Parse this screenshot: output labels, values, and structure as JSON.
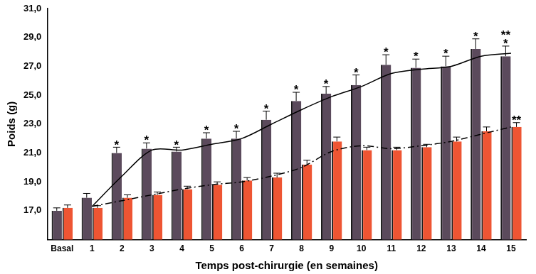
{
  "chart_data": {
    "type": "bar",
    "x_label": "Temps post-chirurgie (en semaines)",
    "y_label": "Poids (g)",
    "categories": [
      "Basal",
      "1",
      "2",
      "3",
      "4",
      "5",
      "6",
      "7",
      "8",
      "9",
      "10",
      "11",
      "12",
      "13",
      "14",
      "15"
    ],
    "series": [
      {
        "color": "#5b4a5c",
        "values": [
          17.0,
          17.9,
          21.0,
          21.3,
          21.1,
          22.0,
          22.0,
          23.3,
          24.6,
          25.1,
          25.7,
          27.1,
          26.9,
          27.0,
          28.2,
          27.7
        ],
        "errors": [
          0.2,
          0.3,
          0.4,
          0.4,
          0.3,
          0.4,
          0.5,
          0.6,
          0.6,
          0.5,
          0.7,
          0.7,
          0.6,
          0.7,
          0.7,
          0.7
        ]
      },
      {
        "color": "#ee5533",
        "values": [
          17.2,
          17.2,
          17.9,
          18.1,
          18.5,
          18.8,
          19.1,
          19.3,
          20.2,
          21.8,
          21.2,
          21.2,
          21.4,
          21.8,
          22.5,
          22.8
        ],
        "errors": [
          0.2,
          0.15,
          0.2,
          0.2,
          0.2,
          0.2,
          0.2,
          0.3,
          0.3,
          0.3,
          0.2,
          0.2,
          0.2,
          0.3,
          0.3,
          0.3
        ]
      },
      {
        "type": "line",
        "color": "#000000",
        "line_style": "solid",
        "marker": "none",
        "values": [
          null,
          17.3,
          19.4,
          21.2,
          21.2,
          21.6,
          22.0,
          23.0,
          24.0,
          24.9,
          25.6,
          26.5,
          26.8,
          27.0,
          27.7,
          27.9
        ]
      },
      {
        "type": "line",
        "color": "#000000",
        "line_style": "dashdot",
        "marker": "none",
        "values": [
          null,
          17.3,
          17.7,
          18.1,
          18.5,
          18.8,
          19.0,
          19.4,
          20.0,
          21.1,
          21.5,
          21.3,
          21.5,
          21.8,
          22.3,
          22.8
        ]
      }
    ],
    "ylim": [
      15,
      31
    ],
    "yticks": [
      {
        "value": 17,
        "label": "17,0"
      },
      {
        "value": 19,
        "label": "19,0"
      },
      {
        "value": 21,
        "label": "21,0"
      },
      {
        "value": 23,
        "label": "23,0"
      },
      {
        "value": 25,
        "label": "25,0"
      },
      {
        "value": 27,
        "label": "27,0"
      },
      {
        "value": 29,
        "label": "29,0"
      },
      {
        "value": 31,
        "label": "31,0"
      }
    ],
    "grid": false,
    "annotations": [
      {
        "category": "2",
        "series": 0,
        "text": "*"
      },
      {
        "category": "3",
        "series": 0,
        "text": "*"
      },
      {
        "category": "4",
        "series": 0,
        "text": "*"
      },
      {
        "category": "5",
        "series": 0,
        "text": "*"
      },
      {
        "category": "6",
        "series": 0,
        "text": "*"
      },
      {
        "category": "7",
        "series": 0,
        "text": "*"
      },
      {
        "category": "8",
        "series": 0,
        "text": "*"
      },
      {
        "category": "9",
        "series": 0,
        "text": "*"
      },
      {
        "category": "10",
        "series": 0,
        "text": "*"
      },
      {
        "category": "11",
        "series": 0,
        "text": "*"
      },
      {
        "category": "12",
        "series": 0,
        "text": "*"
      },
      {
        "category": "13",
        "series": 0,
        "text": "*"
      },
      {
        "category": "14",
        "series": 0,
        "text": "*"
      },
      {
        "category": "15",
        "series": 0,
        "text": "*"
      },
      {
        "category": "15",
        "series": 0,
        "text": "**"
      },
      {
        "category": "15",
        "series": 1,
        "text": "**"
      }
    ]
  }
}
